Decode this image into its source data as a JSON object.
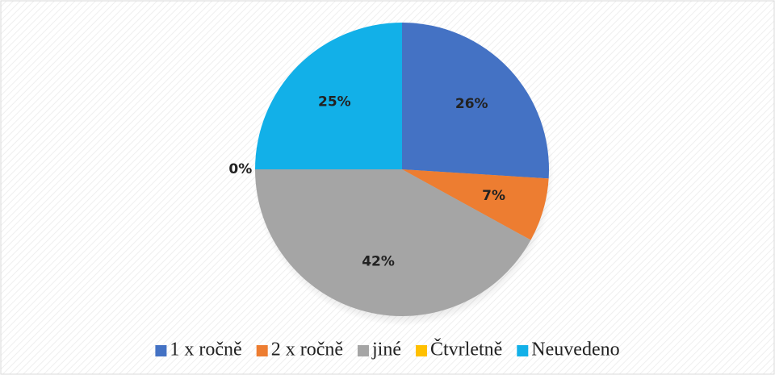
{
  "chart_data": {
    "type": "pie",
    "categories": [
      "1 x ročně",
      "2 x ročně",
      "jiné",
      "Čtvrletně",
      "Neuvedeno"
    ],
    "values": [
      26,
      7,
      42,
      0,
      25
    ],
    "value_labels": [
      "26%",
      "7%",
      "42%",
      "0%",
      "25%"
    ],
    "colors": [
      "#4472c4",
      "#ed7d31",
      "#a5a5a5",
      "#ffc000",
      "#12b0e8"
    ],
    "legend": "bottom"
  }
}
